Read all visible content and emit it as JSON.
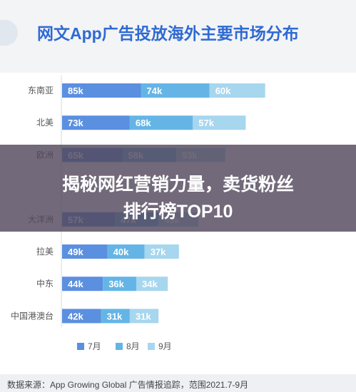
{
  "header": {
    "title": "网文App广告投放海外主要市场分布"
  },
  "banner": {
    "line1": "揭秘网红营销力量，卖货粉丝",
    "line2": "排行榜TOP10"
  },
  "source": {
    "text": "数据来源：App Growing Global 广告情报追踪，范围2021.7-9月"
  },
  "colors": {
    "jul": "#5b8fe0",
    "aug": "#64b5e6",
    "sep": "#a7d6ef",
    "title": "#2f6ad3"
  },
  "chart_data": {
    "type": "bar",
    "orientation": "horizontal",
    "stacked": true,
    "title": "网文App广告投放海外主要市场分布",
    "categories": [
      "东南亚",
      "北美",
      "欧洲",
      "",
      "大洋洲",
      "拉美",
      "中东",
      "中国港澳台"
    ],
    "series": [
      {
        "name": "7月",
        "values": [
          85,
          73,
          65,
          null,
          57,
          49,
          44,
          42
        ],
        "labels": [
          "85k",
          "73k",
          "65k",
          "",
          "57k",
          "49k",
          "44k",
          "42k"
        ]
      },
      {
        "name": "8月",
        "values": [
          74,
          68,
          58,
          null,
          47,
          40,
          36,
          31
        ],
        "labels": [
          "74k",
          "68k",
          "58k",
          "",
          "47k",
          "40k",
          "36k",
          "31k"
        ]
      },
      {
        "name": "9月",
        "values": [
          60,
          57,
          53,
          null,
          43,
          37,
          34,
          31
        ],
        "labels": [
          "60k",
          "57k",
          "53k",
          "",
          "43k",
          "37k",
          "34k",
          "31k"
        ]
      }
    ],
    "unit": "k",
    "legend_position": "bottom",
    "grid": false
  }
}
